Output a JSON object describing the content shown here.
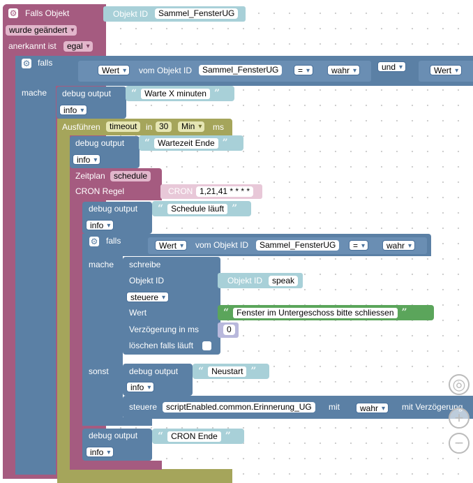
{
  "root": {
    "title": "Falls Objekt",
    "object_id_label": "Objekt ID",
    "object_id_value": "Sammel_FensterUG",
    "changed": "wurde geändert",
    "acknowledged_label": "anerkannt ist",
    "acknowledged_value": "egal"
  },
  "if1": {
    "falls": "falls",
    "mache": "mache",
    "cond_wert": "Wert",
    "cond_vom": "vom Objekt ID",
    "cond_object": "Sammel_FensterUG",
    "cond_op": "=",
    "cond_value": "wahr",
    "und": "und",
    "cond2_wert": "Wert"
  },
  "debug1": {
    "label": "debug output",
    "text": "Warte X minuten",
    "level": "info"
  },
  "timeout": {
    "label": "Ausführen",
    "name": "timeout",
    "in": "in",
    "amount": "30",
    "unit": "Min",
    "ms": "ms"
  },
  "debug2": {
    "label": "debug output",
    "text": "Wartezeit Ende",
    "level": "info"
  },
  "schedule": {
    "label": "Zeitplan",
    "name": "schedule",
    "cron_label": "CRON Regel",
    "cron_tag": "CRON",
    "cron_value": "1,21,41 * * * *"
  },
  "debug3": {
    "label": "debug output",
    "text": "Schedule läuft",
    "level": "info"
  },
  "if2": {
    "falls": "falls",
    "mache": "mache",
    "sonst": "sonst",
    "cond_wert": "Wert",
    "cond_vom": "vom Objekt ID",
    "cond_object": "Sammel_FensterUG",
    "cond_op": "=",
    "cond_value": "wahr"
  },
  "write": {
    "label": "schreibe",
    "object_label": "Objekt ID",
    "object_tag": "Objekt ID",
    "object_value": "speak",
    "mode": "steuere",
    "wert_label": "Wert",
    "wert_text": "Fenster im Untergeschoss bitte schliessen",
    "delay_label": "Verzögerung in ms",
    "delay_value": "0",
    "clear_label": "löschen falls läuft"
  },
  "debug4": {
    "label": "debug output",
    "text": "Neustart",
    "level": "info"
  },
  "control": {
    "label": "steuere",
    "target": "scriptEnabled.common.Erinnerung_UG",
    "mit": "mit",
    "value": "wahr",
    "delay": "mit Verzögerung"
  },
  "debug5": {
    "label": "debug output",
    "text": "CRON Ende",
    "level": "info"
  },
  "zoom": {
    "reset": "◎",
    "plus": "+",
    "minus": "−"
  }
}
